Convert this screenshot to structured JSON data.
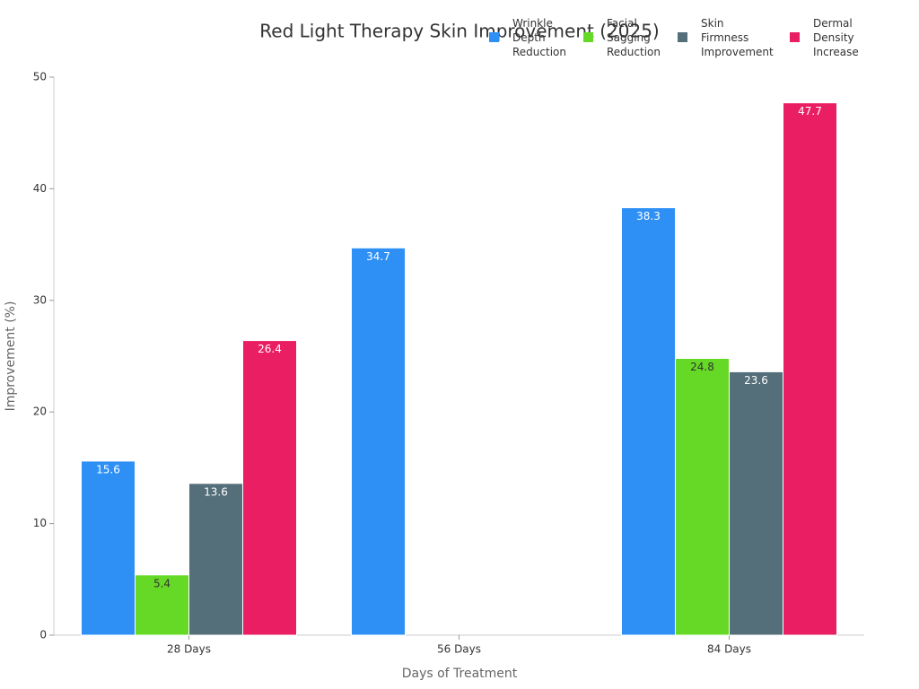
{
  "chart_data": {
    "type": "bar",
    "title": "Red Light Therapy Skin Improvement (2025)",
    "x_label": "Days of Treatment",
    "y_label": "Improvement (%)",
    "categories": [
      "28 Days",
      "56 Days",
      "84 Days"
    ],
    "series": [
      {
        "name": "Wrinkle Depth Reduction",
        "color": "#2e90f5",
        "values": [
          15.6,
          34.7,
          38.3
        ]
      },
      {
        "name": "Facial Sagging Reduction",
        "color": "#66d926",
        "values": [
          5.4,
          null,
          24.8
        ]
      },
      {
        "name": "Skin Firmness Improvement",
        "color": "#546e7a",
        "values": [
          13.6,
          null,
          23.6
        ]
      },
      {
        "name": "Dermal Density Increase",
        "color": "#e91e63",
        "values": [
          26.4,
          null,
          47.7
        ]
      }
    ],
    "ylim": [
      0,
      50
    ],
    "yticks": [
      0,
      10,
      20,
      30,
      40,
      50
    ],
    "grid": false,
    "legend": "top-right"
  }
}
